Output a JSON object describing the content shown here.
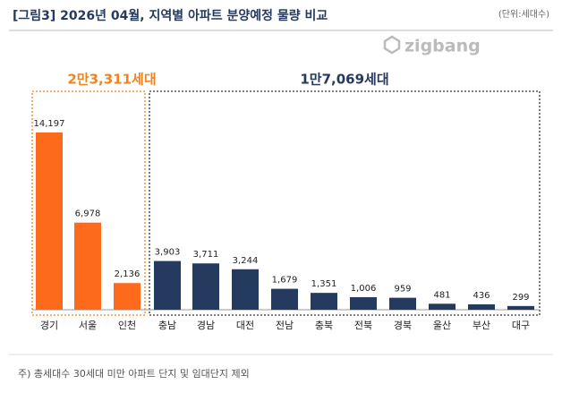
{
  "chart_data": {
    "type": "bar",
    "title": "[그림3] 2026년 04월, 지역별 아파트 분양예정 물량 비교",
    "unit": "(단위:세대수)",
    "logo": "zigbang",
    "annotations": [
      "2만3,311세대",
      "1만7,069세대"
    ],
    "categories": [
      "경기",
      "서울",
      "인천",
      "충남",
      "경남",
      "대전",
      "전남",
      "충북",
      "전북",
      "경북",
      "울산",
      "부산",
      "대구"
    ],
    "values": [
      14197,
      6978,
      2136,
      3903,
      3711,
      3244,
      1679,
      1351,
      1006,
      959,
      481,
      436,
      299
    ],
    "value_labels": [
      "14,197",
      "6,978",
      "2,136",
      "3,903",
      "3,711",
      "3,244",
      "1,679",
      "1,351",
      "1,006",
      "959",
      "481",
      "436",
      "299"
    ],
    "colors": [
      "#fd6a1c",
      "#fd6a1c",
      "#fd6a1c",
      "#243a5e",
      "#243a5e",
      "#243a5e",
      "#243a5e",
      "#243a5e",
      "#243a5e",
      "#243a5e",
      "#243a5e",
      "#243a5e",
      "#243a5e"
    ],
    "annotation_colors": [
      "#f0831e",
      "#243a5e"
    ],
    "footnote": "주) 총세대수 30세대 미만 아파트  단지 및 임대단지 제외"
  }
}
